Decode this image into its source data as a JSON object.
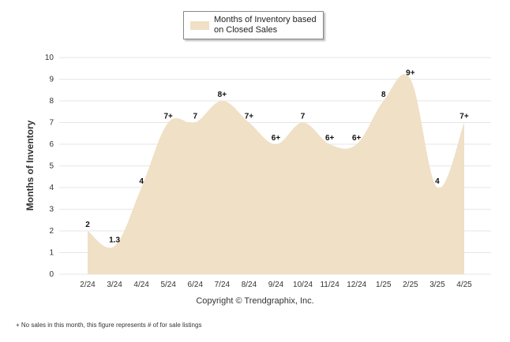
{
  "legend": {
    "label": "Months of Inventory based on Closed Sales"
  },
  "copyright": "Copyright © Trendgraphix, Inc.",
  "footnote": "+ No sales in this month, this figure represents # of for sale listings",
  "colors": {
    "area": "#efe0c6",
    "grid": "#e6e6e6"
  },
  "chart_data": {
    "type": "area",
    "title": "",
    "xlabel": "",
    "ylabel": "Months of Inventory",
    "ylim": [
      0,
      10
    ],
    "yticks": [
      "0",
      "1",
      "2",
      "3",
      "4",
      "5",
      "6",
      "7",
      "8",
      "9",
      "10"
    ],
    "grid": true,
    "legend_position": "top-center",
    "categories": [
      "2/24",
      "3/24",
      "4/24",
      "5/24",
      "6/24",
      "7/24",
      "8/24",
      "9/24",
      "10/24",
      "11/24",
      "12/24",
      "1/25",
      "2/25",
      "3/25",
      "4/25"
    ],
    "series": [
      {
        "name": "Months of Inventory based on Closed Sales",
        "values": [
          2,
          1.3,
          4,
          7,
          7,
          8,
          7,
          6,
          7,
          6,
          6,
          8,
          9,
          4,
          7
        ],
        "labels": [
          "2",
          "1.3",
          "4",
          "7+",
          "7",
          "8+",
          "7+",
          "6+",
          "7",
          "6+",
          "6+",
          "8",
          "9+",
          "4",
          "7+"
        ]
      }
    ]
  }
}
